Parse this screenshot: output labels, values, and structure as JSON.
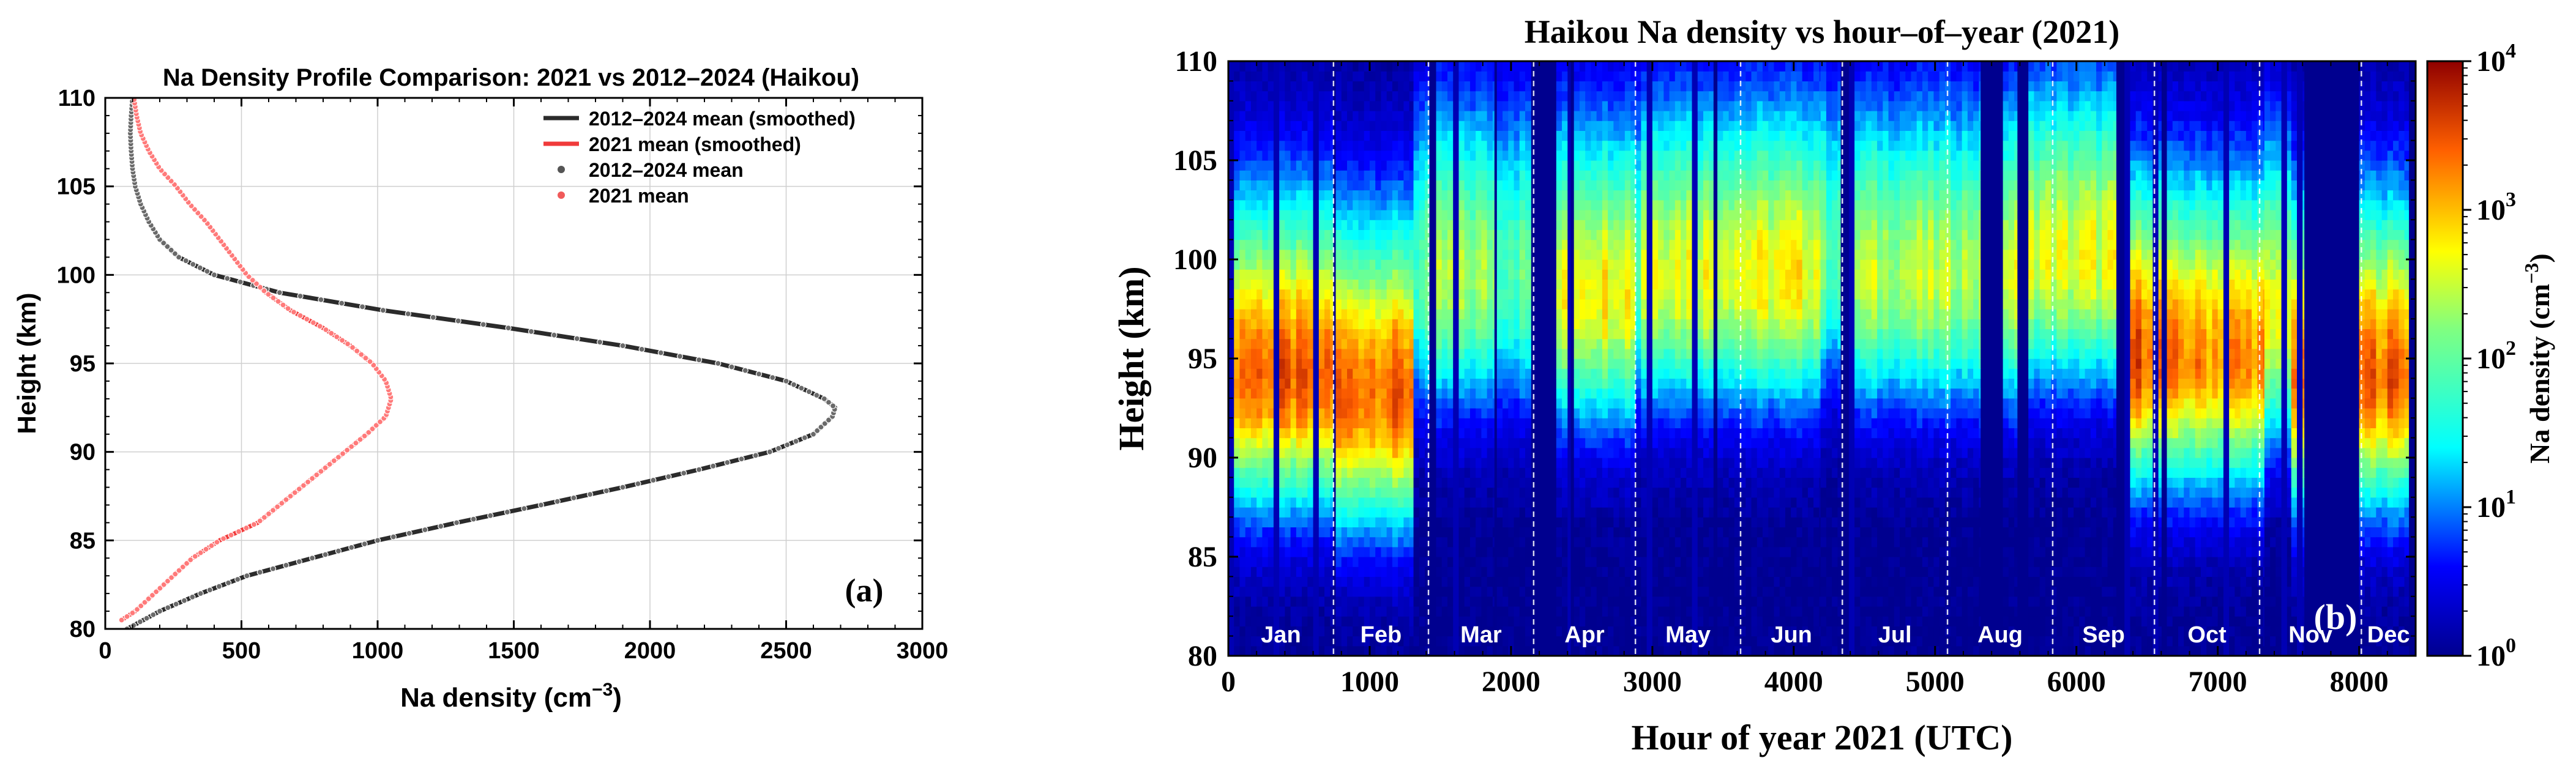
{
  "panels": {
    "a": {
      "label": "(a)",
      "chart_data": {
        "type": "scatter",
        "title": "Na Density Profile Comparison: 2021 vs 2012–2024 (Haikou)",
        "xlabel": "Na density (cm",
        "xlabel_sup": "−3",
        "xlabel_close": ")",
        "ylabel": "Height (km)",
        "xlim": [
          0,
          3000
        ],
        "ylim": [
          80,
          110
        ],
        "xticks": [
          "0",
          "500",
          "1000",
          "1500",
          "2000",
          "2500",
          "3000"
        ],
        "yticks": [
          "80",
          "85",
          "90",
          "95",
          "100",
          "105",
          "110"
        ],
        "grid": true,
        "legend_position": "top-right",
        "legend": [
          {
            "label": "2012–2024 mean (smoothed)",
            "kind": "line",
            "color": "#2b2b2b"
          },
          {
            "label": "2021 mean (smoothed)",
            "kind": "line",
            "color": "#f03a3a"
          },
          {
            "label": "2012–2024 mean",
            "kind": "dot",
            "color": "#555555"
          },
          {
            "label": "2021 mean",
            "kind": "dot",
            "color": "#f05a5a"
          }
        ],
        "series": [
          {
            "name": "2012–2024 mean",
            "color": "#2b2b2b",
            "height_km": [
              80,
              81,
              82,
              83,
              84,
              85,
              86,
              87,
              88,
              89,
              90,
              91,
              92,
              92.5,
              93,
              94,
              95,
              96,
              97,
              98,
              99,
              100,
              101,
              102,
              103,
              104,
              105,
              106,
              107,
              108,
              109,
              110
            ],
            "density": [
              80,
              200,
              350,
              520,
              760,
              1000,
              1290,
              1600,
              1900,
              2180,
              2440,
              2600,
              2670,
              2680,
              2640,
              2500,
              2250,
              1900,
              1480,
              1020,
              640,
              400,
              270,
              200,
              160,
              130,
              110,
              100,
              95,
              92,
              95,
              100
            ]
          },
          {
            "name": "2021 mean",
            "color": "#f03a3a",
            "height_km": [
              80.5,
              81,
              82,
              83,
              84,
              85,
              86,
              87,
              88,
              89,
              90,
              91,
              92,
              93,
              94,
              95,
              96,
              97,
              98,
              99,
              100,
              101,
              102,
              103,
              104,
              105,
              106,
              107,
              108,
              109,
              110
            ],
            "density": [
              60,
              110,
              180,
              250,
              320,
              420,
              560,
              640,
              720,
              800,
              880,
              960,
              1030,
              1050,
              1030,
              980,
              900,
              800,
              680,
              590,
              520,
              470,
              420,
              370,
              310,
              260,
              200,
              160,
              130,
              115,
              105
            ]
          }
        ]
      }
    },
    "b": {
      "label": "(b)",
      "chart_data": {
        "type": "heatmap",
        "title": "Haikou Na density vs hour–of–year (2021)",
        "xlabel": "Hour of year 2021 (UTC)",
        "ylabel": "Height (km)",
        "xlim": [
          0,
          8400
        ],
        "ylim": [
          80,
          110
        ],
        "xticks": [
          "0",
          "1000",
          "2000",
          "3000",
          "4000",
          "5000",
          "6000",
          "7000",
          "8000"
        ],
        "yticks": [
          "80",
          "85",
          "90",
          "95",
          "100",
          "105",
          "110"
        ],
        "colorbar": {
          "label": "Na density (cm",
          "label_sup": "−3",
          "label_close": ")",
          "scale": "log",
          "range": [
            1,
            10000
          ],
          "tick_base": "10",
          "tick_exponents": [
            "0",
            "1",
            "2",
            "3",
            "4"
          ]
        },
        "months": [
          "Jan",
          "Feb",
          "Mar",
          "Apr",
          "May",
          "Jun",
          "Jul",
          "Aug",
          "Sep",
          "Oct",
          "Nov",
          "Dec"
        ],
        "month_start_hours": [
          0,
          744,
          1416,
          2160,
          2880,
          3624,
          4344,
          5088,
          5832,
          6552,
          7296,
          8016
        ],
        "segments": [
          {
            "from": 0,
            "to": 740,
            "level": 3.4,
            "peak_km": 94
          },
          {
            "from": 740,
            "to": 760,
            "level": -1
          },
          {
            "from": 760,
            "to": 1310,
            "level": 3.4,
            "peak_km": 93
          },
          {
            "from": 1310,
            "to": 1420,
            "level": 1.9,
            "peak_km": 99
          },
          {
            "from": 1420,
            "to": 1470,
            "level": -1
          },
          {
            "from": 1470,
            "to": 1880,
            "level": 2.3,
            "peak_km": 99
          },
          {
            "from": 1880,
            "to": 1900,
            "level": -1
          },
          {
            "from": 1900,
            "to": 2140,
            "level": 2.0,
            "peak_km": 99
          },
          {
            "from": 2140,
            "to": 2320,
            "level": -1
          },
          {
            "from": 2320,
            "to": 2420,
            "level": 2.6,
            "peak_km": 98
          },
          {
            "from": 2420,
            "to": 2445,
            "level": -1
          },
          {
            "from": 2445,
            "to": 2880,
            "level": 2.8,
            "peak_km": 98
          },
          {
            "from": 2880,
            "to": 2920,
            "level": 1.9,
            "peak_km": 99
          },
          {
            "from": 2920,
            "to": 3430,
            "level": 2.7,
            "peak_km": 99
          },
          {
            "from": 3430,
            "to": 3460,
            "level": -1
          },
          {
            "from": 3460,
            "to": 4190,
            "level": 2.7,
            "peak_km": 99
          },
          {
            "from": 4190,
            "to": 4330,
            "level": 2.0,
            "peak_km": 100
          },
          {
            "from": 4330,
            "to": 4390,
            "level": -1
          },
          {
            "from": 4390,
            "to": 5320,
            "level": 2.4,
            "peak_km": 99
          },
          {
            "from": 5320,
            "to": 5480,
            "level": -1
          },
          {
            "from": 5480,
            "to": 5580,
            "level": 2.6,
            "peak_km": 99
          },
          {
            "from": 5580,
            "to": 5660,
            "level": -1
          },
          {
            "from": 5660,
            "to": 6280,
            "level": 2.6,
            "peak_km": 100
          },
          {
            "from": 6280,
            "to": 6340,
            "level": -1
          },
          {
            "from": 6340,
            "to": 6600,
            "level": 3.5,
            "peak_km": 95
          },
          {
            "from": 6600,
            "to": 6640,
            "level": -1
          },
          {
            "from": 6640,
            "to": 7330,
            "level": 3.2,
            "peak_km": 95
          },
          {
            "from": 7330,
            "to": 7520,
            "level": 2.6,
            "peak_km": 97
          },
          {
            "from": 7520,
            "to": 7610,
            "level": 3.1,
            "peak_km": 94
          },
          {
            "from": 7610,
            "to": 8000,
            "level": -1
          },
          {
            "from": 8000,
            "to": 8350,
            "level": 3.4,
            "peak_km": 94
          },
          {
            "from": 8350,
            "to": 8400,
            "level": -1
          }
        ]
      }
    }
  }
}
